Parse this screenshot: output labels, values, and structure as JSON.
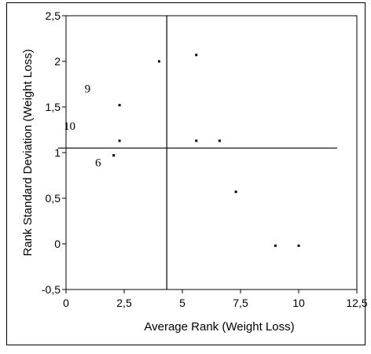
{
  "chart_data": {
    "type": "scatter",
    "title": "",
    "xlabel": "Average Rank (Weight Loss)",
    "ylabel": "Rank Standard Deviation (Weight Loss)",
    "xlim": [
      0,
      12.5
    ],
    "ylim": [
      -0.5,
      2.5
    ],
    "x_ticks": [
      {
        "value": 0,
        "label": "0"
      },
      {
        "value": 2.5,
        "label": "2,5"
      },
      {
        "value": 5,
        "label": "5"
      },
      {
        "value": 7.5,
        "label": "7,5"
      },
      {
        "value": 10,
        "label": "10"
      },
      {
        "value": 12.5,
        "label": "12,5"
      }
    ],
    "y_ticks": [
      {
        "value": -0.5,
        "label": "-0,5"
      },
      {
        "value": 0,
        "label": "0"
      },
      {
        "value": 0.5,
        "label": "0,5"
      },
      {
        "value": 1,
        "label": "1"
      },
      {
        "value": 1.5,
        "label": "1,5"
      },
      {
        "value": 2,
        "label": "2"
      },
      {
        "value": 2.5,
        "label": "2,5"
      }
    ],
    "grid": false,
    "reference_lines": {
      "vertical_x": 4.33,
      "horizontal_y": 1.05
    },
    "points": [
      {
        "x": 2.3,
        "y": 1.52
      },
      {
        "x": 2.3,
        "y": 1.13
      },
      {
        "x": 4.0,
        "y": 2.0
      },
      {
        "x": 5.6,
        "y": 2.07
      },
      {
        "x": 5.6,
        "y": 1.13
      },
      {
        "x": 6.6,
        "y": 1.13
      },
      {
        "x": 7.3,
        "y": 0.57
      },
      {
        "x": 9.0,
        "y": -0.02
      },
      {
        "x": 10.0,
        "y": -0.02
      },
      {
        "x": 2.05,
        "y": 0.97
      }
    ],
    "annotations": [
      {
        "text": "9",
        "x": 0.8,
        "y": 1.66
      },
      {
        "text": "10",
        "x": -0.1,
        "y": 1.25
      },
      {
        "text": "6",
        "x": 1.25,
        "y": 0.85
      }
    ]
  }
}
